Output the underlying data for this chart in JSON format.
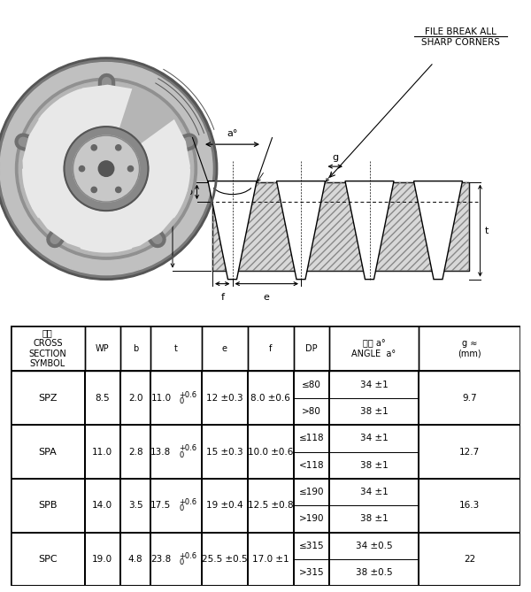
{
  "table_headers": [
    "槽形\nCROSS\nSECTION\nSYMBOL",
    "WP",
    "b",
    "t",
    "e",
    "f",
    "DP",
    "角度 a°\nANGLE  a°",
    "g ≈\n(mm)"
  ],
  "rows": [
    {
      "symbol": "SPZ",
      "WP": "8.5",
      "b": "2.0",
      "t_main": "11.0",
      "t_super": "+0.6",
      "t_sub": "0",
      "e": "12 ±0.3",
      "f": "8.0 ±0.6",
      "dp_rows": [
        "≤80",
        ">80"
      ],
      "angle_rows": [
        "34 ±1",
        "38 ±1"
      ],
      "g": "9.7"
    },
    {
      "symbol": "SPA",
      "WP": "11.0",
      "b": "2.8",
      "t_main": "13.8",
      "t_super": "+0.6",
      "t_sub": "0",
      "e": "15 ±0.3",
      "f": "10.0 ±0.6",
      "dp_rows": [
        "≤118",
        "<118"
      ],
      "angle_rows": [
        "34 ±1",
        "38 ±1"
      ],
      "g": "12.7"
    },
    {
      "symbol": "SPB",
      "WP": "14.0",
      "b": "3.5",
      "t_main": "17.5",
      "t_super": "+0.6",
      "t_sub": "0",
      "e": "19 ±0.4",
      "f": "12.5 ±0.8",
      "dp_rows": [
        "≤190",
        ">190"
      ],
      "angle_rows": [
        "34 ±1",
        "38 ±1"
      ],
      "g": "16.3"
    },
    {
      "symbol": "SPC",
      "WP": "19.0",
      "b": "4.8",
      "t_main": "23.8",
      "t_super": "+0.6",
      "t_sub": "0",
      "e": "25.5 ±0.5",
      "f": "17.0 ±1",
      "dp_rows": [
        "≤315",
        ">315"
      ],
      "angle_rows": [
        "34 ±0.5",
        "38 ±0.5"
      ],
      "g": "22"
    }
  ],
  "bg_color": "#ffffff",
  "font_size_table": 7.5,
  "font_size_header": 7.0
}
